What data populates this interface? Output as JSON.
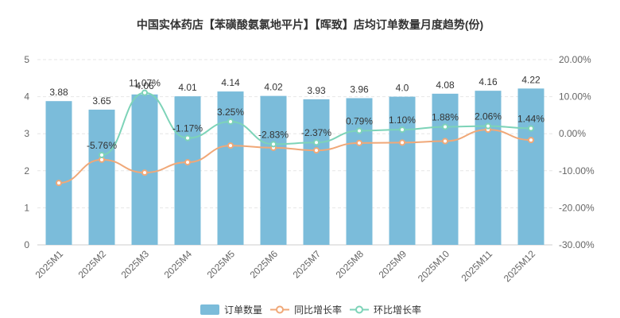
{
  "chart_data": {
    "type": "bar",
    "title": "中国实体药店【苯磺酸氨氯地平片】【晖致】店均订单数量月度趋势(份)",
    "categories": [
      "2025M1",
      "2025M2",
      "2025M3",
      "2025M4",
      "2025M5",
      "2025M6",
      "2025M7",
      "2025M8",
      "2025M9",
      "2025M10",
      "2025M11",
      "2025M12"
    ],
    "ylim": [
      0,
      5
    ],
    "yticks": [
      "0",
      "1",
      "2",
      "3",
      "4",
      "5"
    ],
    "y2lim": [
      -30,
      20
    ],
    "y2ticks": [
      "-30.00%",
      "-20.00%",
      "-10.00%",
      "0.00%",
      "10.00%",
      "20.00%"
    ],
    "series": [
      {
        "name": "订单数量",
        "kind": "bar",
        "color": "#7bbcda",
        "values": [
          3.88,
          3.65,
          4.06,
          4.01,
          4.14,
          4.02,
          3.93,
          3.96,
          4.0,
          4.08,
          4.16,
          4.22
        ],
        "labels": [
          "3.88",
          "3.65",
          "4.06",
          "4.01",
          "4.14",
          "4.02",
          "3.93",
          "3.96",
          "4.0",
          "4.08",
          "4.16",
          "4.22"
        ]
      },
      {
        "name": "同比增长率",
        "kind": "line",
        "axis": "right",
        "color": "#f0a878",
        "values": [
          -13.3,
          -7.0,
          -10.5,
          -7.7,
          -3.2,
          -3.8,
          -4.5,
          -2.5,
          -2.4,
          -2.0,
          1.1,
          -1.7
        ]
      },
      {
        "name": "环比增长率",
        "kind": "line",
        "axis": "right",
        "color": "#7dd3b8",
        "values": [
          null,
          -5.76,
          11.07,
          -1.17,
          3.25,
          -2.83,
          -2.37,
          0.79,
          1.1,
          1.88,
          2.06,
          1.44
        ],
        "labels": [
          "",
          "-5.76%",
          "11.07%",
          "-1.17%",
          "3.25%",
          "-2.83%",
          "-2.37%",
          "0.79%",
          "1.10%",
          "1.88%",
          "2.06%",
          "1.44%"
        ]
      }
    ],
    "legend_position": "bottom-center"
  }
}
